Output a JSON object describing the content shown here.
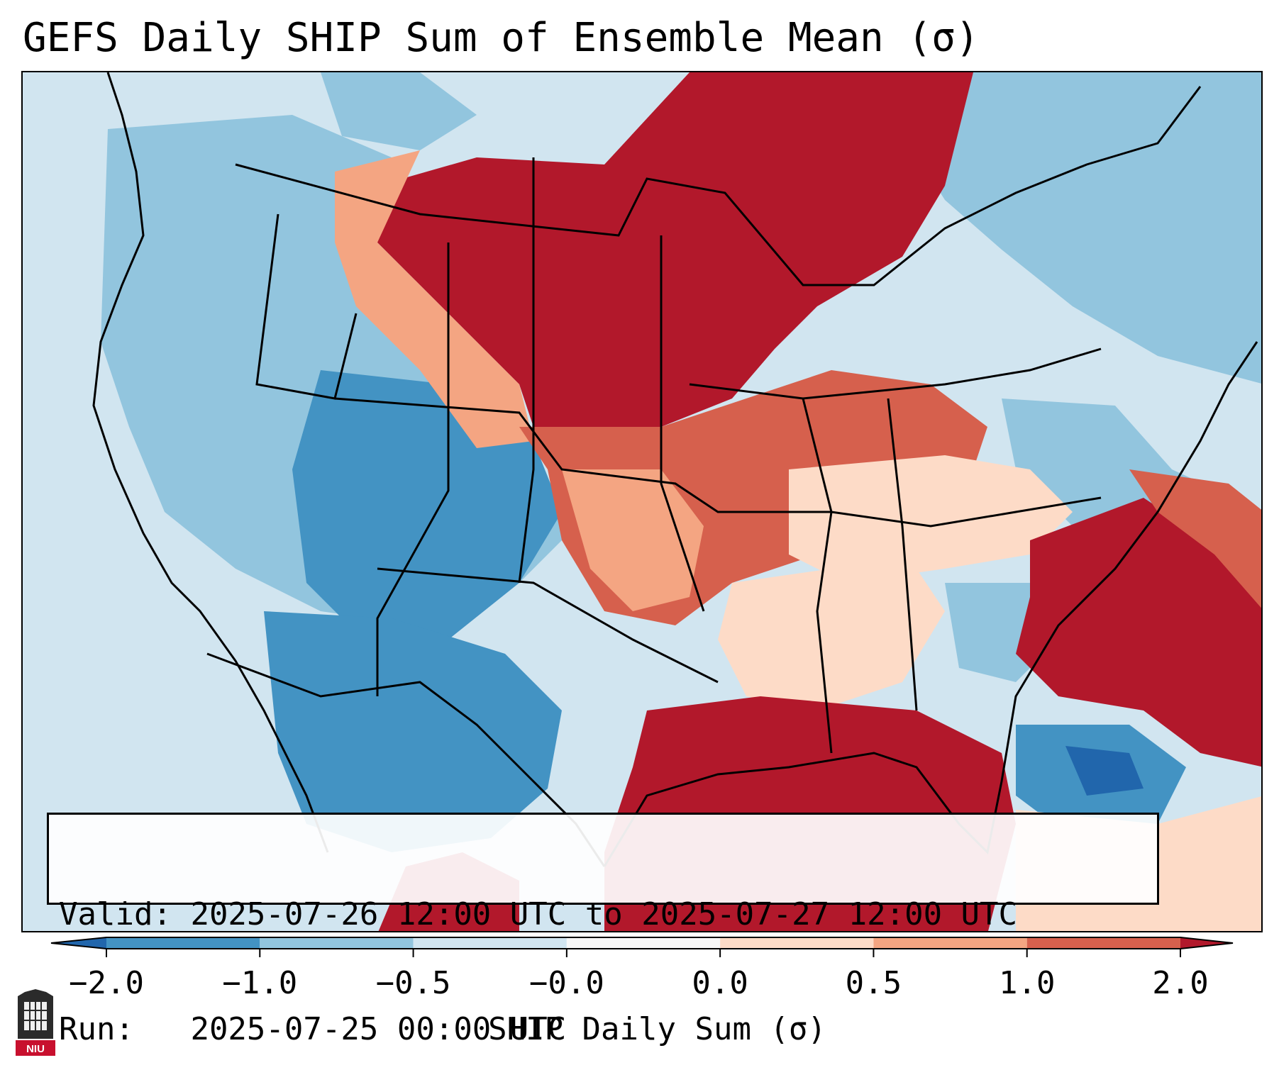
{
  "title": "GEFS Daily SHIP Sum of Ensemble Mean (σ)",
  "info": {
    "valid_label": "Valid:",
    "valid_range": "2025-07-26 12:00 UTC to 2025-07-27 12:00 UTC",
    "run_label": "Run:",
    "run_time": "2025-07-25 00:00 UTC"
  },
  "colorbar": {
    "label": "SHIP Daily Sum (σ)",
    "ticks": [
      "−2.0",
      "−1.0",
      "−0.5",
      "−0.0",
      "0.0",
      "0.5",
      "1.0",
      "2.0"
    ],
    "colors": [
      "#2166ac",
      "#4393c3",
      "#92c5de",
      "#d1e5f0",
      "#f7f7f7",
      "#fddbc7",
      "#f4a582",
      "#d6604d",
      "#b2182b"
    ]
  },
  "logo": {
    "text": "NIU"
  },
  "colors": {
    "ocean_background": "#d1e5f0",
    "strong_positive": "#b2182b",
    "moderate_positive": "#d6604d",
    "weak_positive": "#f4a582",
    "slight_positive": "#fddbc7",
    "slight_negative": "#d1e5f0",
    "weak_negative": "#92c5de",
    "moderate_negative": "#4393c3",
    "strong_negative": "#2166ac"
  }
}
